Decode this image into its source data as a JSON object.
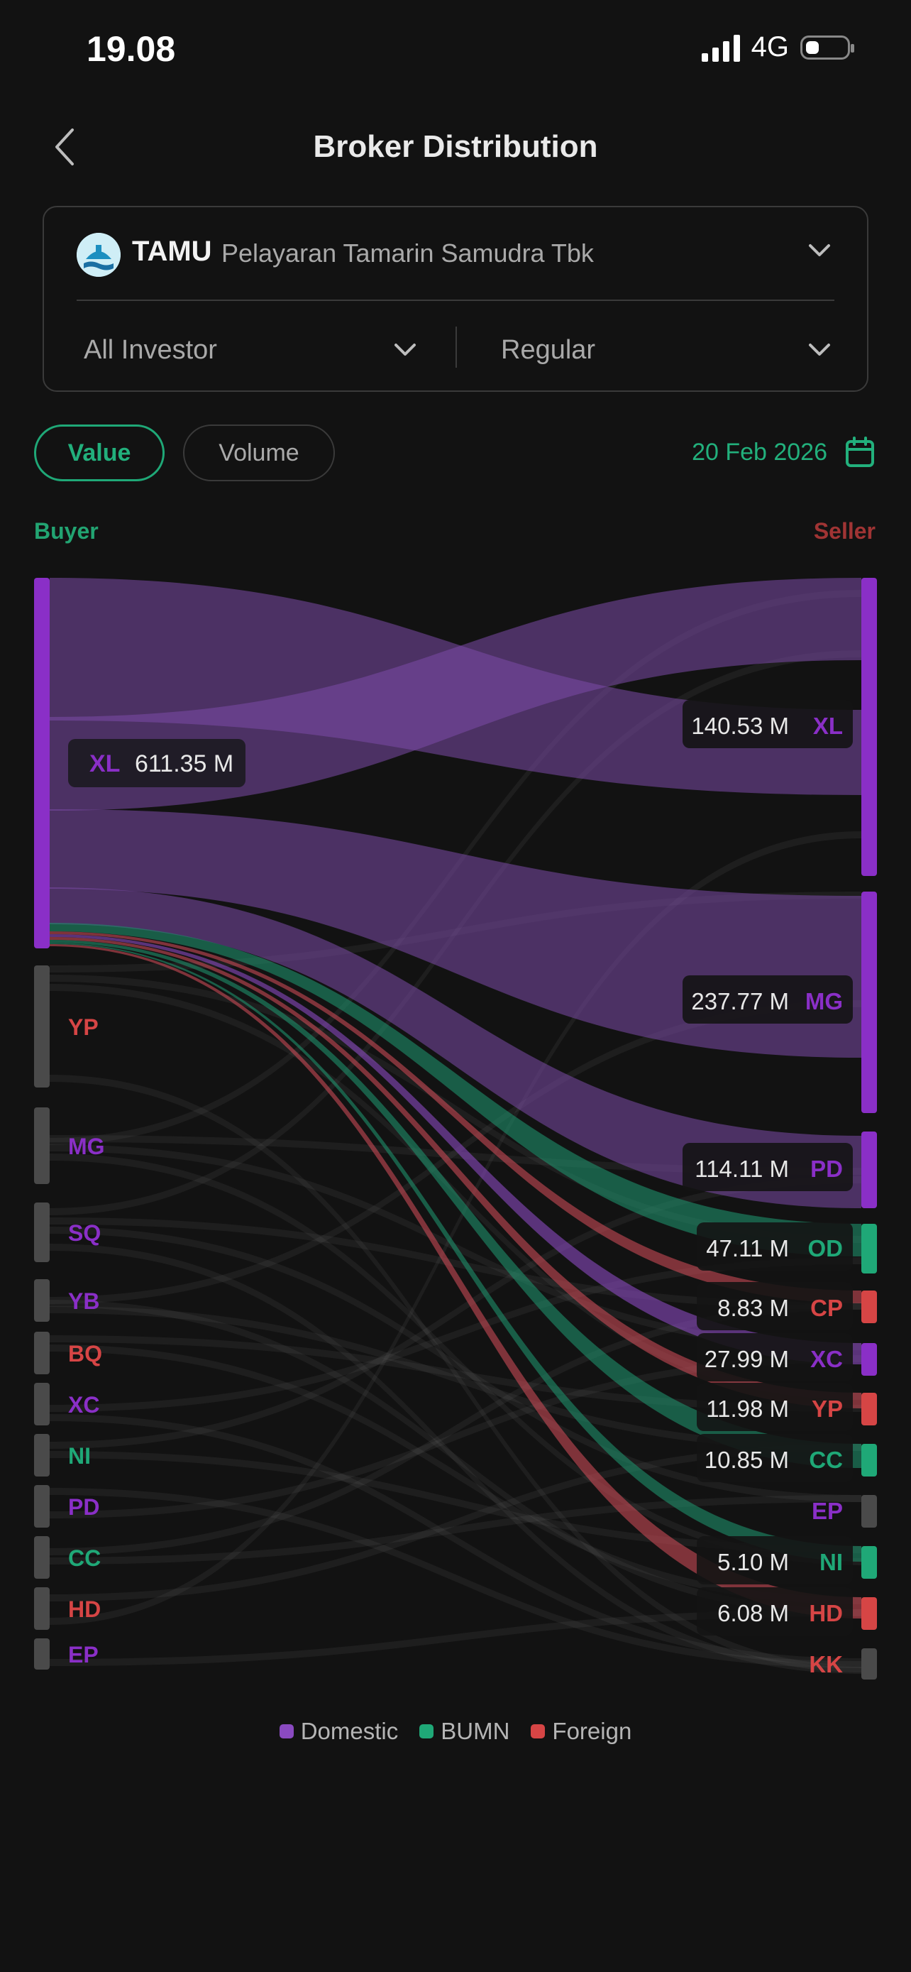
{
  "status_bar": {
    "time": "19.08",
    "network": "4G"
  },
  "header": {
    "title": "Broker Distribution"
  },
  "filters": {
    "stock_code": "TAMU",
    "stock_name": "Pelayaran Tamarin Samudra Tbk",
    "investor": "All Investor",
    "board": "Regular"
  },
  "toggles": {
    "value_label": "Value",
    "volume_label": "Volume",
    "selected": "Value"
  },
  "date": "20 Feb 2026",
  "colors": {
    "background": "#121212",
    "Domestic": "#8a2fc7",
    "BUMN": "#1fa877",
    "Foreign": "#d64545",
    "inactive": "#4a4a4a",
    "accent": "#22b07c"
  },
  "chart_data": {
    "type": "sankey",
    "buyer_title": "Buyer",
    "seller_title": "Seller",
    "buyers": [
      {
        "code": "XL",
        "category": "Domestic",
        "value_label": "611.35 M",
        "value": 611.35
      },
      {
        "code": "YP",
        "category": "Foreign",
        "value_label": ""
      },
      {
        "code": "MG",
        "category": "Domestic",
        "value_label": ""
      },
      {
        "code": "SQ",
        "category": "Domestic",
        "value_label": ""
      },
      {
        "code": "YB",
        "category": "Domestic",
        "value_label": ""
      },
      {
        "code": "BQ",
        "category": "Foreign",
        "value_label": ""
      },
      {
        "code": "XC",
        "category": "Domestic",
        "value_label": ""
      },
      {
        "code": "NI",
        "category": "BUMN",
        "value_label": ""
      },
      {
        "code": "PD",
        "category": "Domestic",
        "value_label": ""
      },
      {
        "code": "CC",
        "category": "BUMN",
        "value_label": ""
      },
      {
        "code": "HD",
        "category": "Foreign",
        "value_label": ""
      },
      {
        "code": "EP",
        "category": "Domestic",
        "value_label": ""
      }
    ],
    "sellers": [
      {
        "code": "XL",
        "category": "Domestic",
        "value_label": "140.53 M",
        "value": 140.53
      },
      {
        "code": "MG",
        "category": "Domestic",
        "value_label": "237.77 M",
        "value": 237.77
      },
      {
        "code": "PD",
        "category": "Domestic",
        "value_label": "114.11 M",
        "value": 114.11
      },
      {
        "code": "OD",
        "category": "BUMN",
        "value_label": "47.11 M",
        "value": 47.11
      },
      {
        "code": "CP",
        "category": "Foreign",
        "value_label": "8.83 M",
        "value": 8.83
      },
      {
        "code": "XC",
        "category": "Domestic",
        "value_label": "27.99 M",
        "value": 27.99
      },
      {
        "code": "YP",
        "category": "Foreign",
        "value_label": "11.98 M",
        "value": 11.98
      },
      {
        "code": "CC",
        "category": "BUMN",
        "value_label": "10.85 M",
        "value": 10.85
      },
      {
        "code": "EP",
        "category": "Domestic",
        "value_label": ""
      },
      {
        "code": "NI",
        "category": "BUMN",
        "value_label": "5.10 M",
        "value": 5.1
      },
      {
        "code": "HD",
        "category": "Foreign",
        "value_label": "6.08 M",
        "value": 6.08
      },
      {
        "code": "KK",
        "category": "Foreign",
        "value_label": ""
      }
    ],
    "highlighted_buyer": "XL",
    "legend": [
      "Domestic",
      "BUMN",
      "Foreign"
    ]
  }
}
